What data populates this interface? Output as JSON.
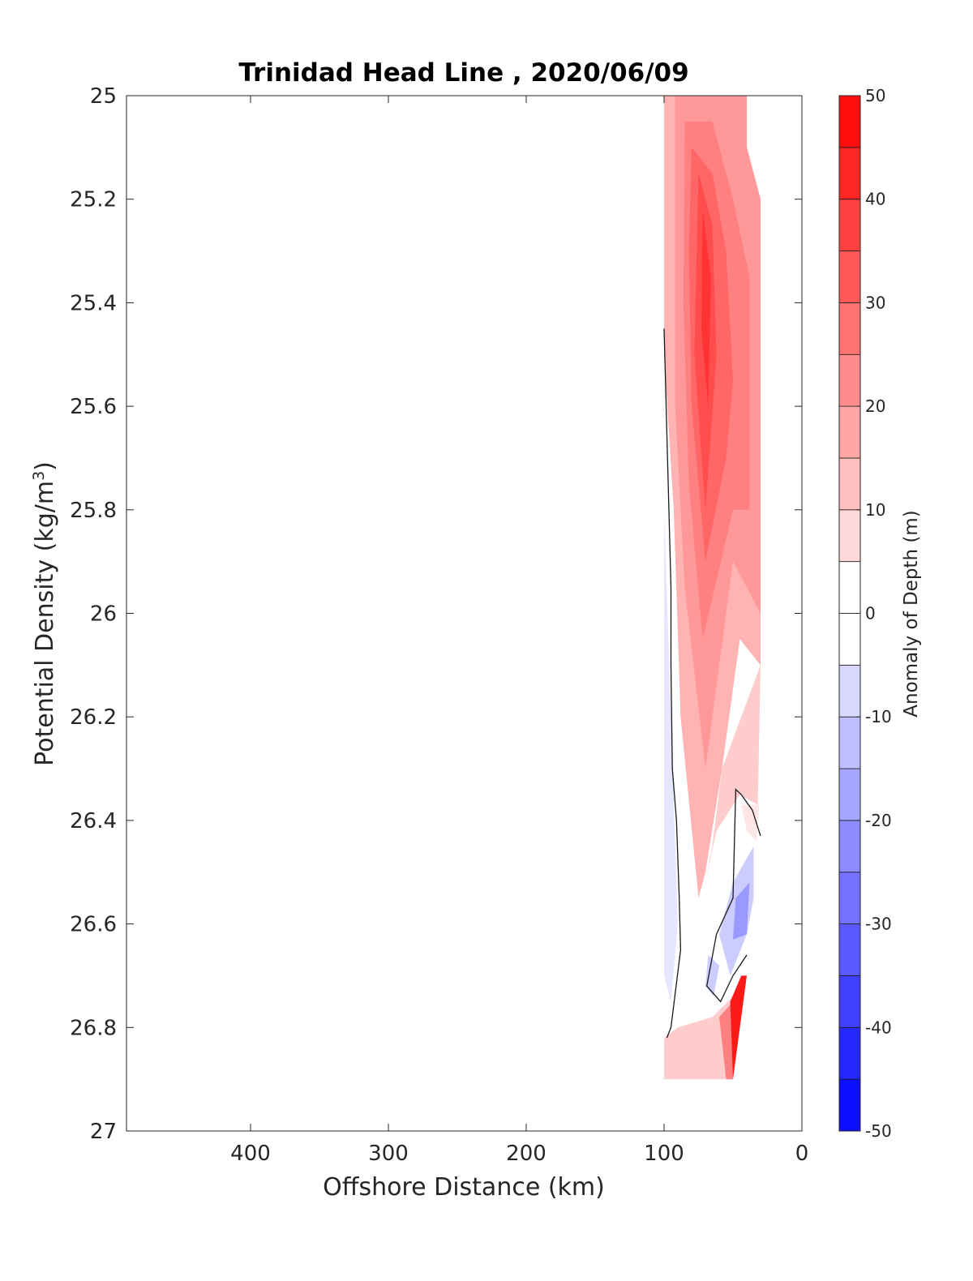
{
  "chart_data": {
    "type": "heatmap",
    "subtype": "filled-contour section",
    "title": "Trinidad Head Line , 2020/06/09",
    "xlabel": "Offshore Distance (km)",
    "ylabel_main": "Potential Density (kg/m",
    "ylabel_sup": "3",
    "ylabel_tail": ")",
    "x_reversed": true,
    "xlim": [
      490,
      0
    ],
    "x_ticks": [
      400,
      300,
      200,
      100,
      0
    ],
    "x_tick_labels": [
      "400",
      "300",
      "200",
      "100",
      "0"
    ],
    "y_reversed": true,
    "ylim": [
      25,
      27
    ],
    "y_ticks": [
      25,
      25.2,
      25.4,
      25.6,
      25.8,
      26,
      26.2,
      26.4,
      26.6,
      26.8,
      27
    ],
    "y_tick_labels": [
      "25",
      "25.2",
      "25.4",
      "25.6",
      "25.8",
      "26",
      "26.2",
      "26.4",
      "26.6",
      "26.8",
      "27"
    ],
    "grid": false,
    "colorbar": {
      "label": "Anomaly of Depth (m)",
      "range": [
        -50,
        50
      ],
      "step": 5,
      "ticks": [
        50,
        40,
        30,
        20,
        10,
        0,
        -10,
        -20,
        -30,
        -40,
        -50
      ],
      "tick_labels": [
        "50",
        "40",
        "30",
        "20",
        "10",
        "0",
        "-10",
        "-20",
        "-30",
        "-40",
        "-50"
      ],
      "colormap": "blue-white-red",
      "neg_color": "#0000ff",
      "mid_color": "#ffffff",
      "pos_color": "#ff0000"
    },
    "data_extent": {
      "x": [
        30,
        100
      ],
      "y": [
        25,
        26.9
      ]
    },
    "contour_regions": [
      {
        "level": 15,
        "points": [
          [
            100,
            25
          ],
          [
            40,
            25
          ],
          [
            40,
            25.1
          ],
          [
            30,
            25.2
          ],
          [
            30,
            26.1
          ],
          [
            45,
            26.05
          ],
          [
            58,
            26.3
          ],
          [
            70,
            26.5
          ],
          [
            75,
            26.55
          ],
          [
            88,
            26.2
          ],
          [
            93,
            25.8
          ],
          [
            100,
            25.5
          ]
        ]
      },
      {
        "level": 20,
        "points": [
          [
            92,
            25
          ],
          [
            40,
            25
          ],
          [
            40,
            25.1
          ],
          [
            30,
            25.2
          ],
          [
            30,
            26.0
          ],
          [
            50,
            25.9
          ],
          [
            70,
            26.3
          ],
          [
            85,
            25.95
          ],
          [
            92,
            25.6
          ]
        ]
      },
      {
        "level": 25,
        "points": [
          [
            85,
            25.05
          ],
          [
            65,
            25.05
          ],
          [
            50,
            25.2
          ],
          [
            38,
            25.35
          ],
          [
            38,
            25.8
          ],
          [
            50,
            25.8
          ],
          [
            72,
            26.05
          ],
          [
            82,
            25.75
          ],
          [
            86,
            25.4
          ]
        ]
      },
      {
        "level": 30,
        "points": [
          [
            80,
            25.1
          ],
          [
            65,
            25.15
          ],
          [
            55,
            25.3
          ],
          [
            50,
            25.55
          ],
          [
            55,
            25.7
          ],
          [
            70,
            25.9
          ],
          [
            80,
            25.6
          ],
          [
            82,
            25.3
          ]
        ]
      },
      {
        "level": 35,
        "points": [
          [
            75,
            25.15
          ],
          [
            65,
            25.25
          ],
          [
            62,
            25.5
          ],
          [
            70,
            25.8
          ],
          [
            78,
            25.5
          ]
        ]
      },
      {
        "level": 40,
        "points": [
          [
            72,
            25.22
          ],
          [
            66,
            25.35
          ],
          [
            68,
            25.6
          ],
          [
            73,
            25.45
          ]
        ]
      },
      {
        "level": 10,
        "points": [
          [
            30,
            26.1
          ],
          [
            58,
            26.3
          ],
          [
            65,
            26.45
          ],
          [
            70,
            26.52
          ],
          [
            62,
            26.42
          ],
          [
            45,
            26.35
          ],
          [
            32,
            26.37
          ]
        ]
      },
      {
        "level": 5,
        "points": [
          [
            31,
            26.37
          ],
          [
            44,
            26.37
          ],
          [
            40,
            26.42
          ],
          [
            33,
            26.44
          ]
        ]
      },
      {
        "level": -5,
        "points": [
          [
            100,
            25.8
          ],
          [
            95,
            26.2
          ],
          [
            90,
            26.6
          ],
          [
            95,
            26.75
          ],
          [
            100,
            26.7
          ]
        ]
      },
      {
        "level": -10,
        "points": [
          [
            35,
            26.45
          ],
          [
            50,
            26.52
          ],
          [
            60,
            26.62
          ],
          [
            52,
            26.7
          ],
          [
            40,
            26.62
          ],
          [
            35,
            26.55
          ]
        ]
      },
      {
        "level": -20,
        "points": [
          [
            38,
            26.52
          ],
          [
            48,
            26.55
          ],
          [
            50,
            26.63
          ],
          [
            40,
            26.62
          ]
        ]
      },
      {
        "level": -10,
        "points": [
          [
            68,
            26.66
          ],
          [
            60,
            26.68
          ],
          [
            64,
            26.74
          ],
          [
            70,
            26.72
          ]
        ]
      },
      {
        "level": 10,
        "points": [
          [
            100,
            26.82
          ],
          [
            90,
            26.8
          ],
          [
            65,
            26.78
          ],
          [
            50,
            26.74
          ],
          [
            50,
            26.9
          ],
          [
            100,
            26.9
          ]
        ]
      },
      {
        "level": 25,
        "points": [
          [
            60,
            26.78
          ],
          [
            50,
            26.75
          ],
          [
            50,
            26.9
          ],
          [
            55,
            26.9
          ]
        ]
      },
      {
        "level": 45,
        "points": [
          [
            52,
            26.75
          ],
          [
            44,
            26.7
          ],
          [
            40,
            26.7
          ],
          [
            50,
            26.9
          ]
        ]
      }
    ],
    "zero_contours": [
      {
        "points": [
          [
            100,
            25.45
          ],
          [
            95,
            25.95
          ],
          [
            95,
            26.1
          ],
          [
            94,
            26.3
          ],
          [
            91,
            26.4
          ],
          [
            89,
            26.55
          ],
          [
            88,
            26.65
          ],
          [
            95,
            26.8
          ],
          [
            98,
            26.82
          ]
        ]
      },
      {
        "points": [
          [
            30,
            26.43
          ],
          [
            36,
            26.38
          ],
          [
            44,
            26.35
          ],
          [
            48,
            26.34
          ],
          [
            50,
            26.55
          ],
          [
            62,
            26.62
          ],
          [
            69,
            26.72
          ],
          [
            59,
            26.75
          ],
          [
            50,
            26.7
          ],
          [
            40,
            26.66
          ]
        ]
      }
    ]
  }
}
